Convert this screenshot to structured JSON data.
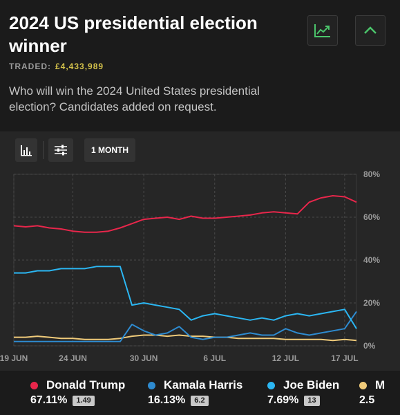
{
  "header": {
    "title": "2024 US presidential election winner",
    "traded_label": "TRADED:",
    "traded_value": "£4,433,989",
    "description": "Who will win the 2024 United States presidential election? Candidates added on request.",
    "chart_icon": "line-chart-icon",
    "collapse_icon": "chevron-up-icon"
  },
  "toolbar": {
    "chart_type_icon": "bar-chart-icon",
    "settings_icon": "sliders-icon",
    "range_label": "1 MONTH"
  },
  "colors": {
    "trump": "#e8264b",
    "harris": "#2e8bd0",
    "biden": "#2bb6f2",
    "fourth": "#f0cb7a",
    "accent": "#4bc56b"
  },
  "chart_data": {
    "type": "line",
    "x_tick_labels": [
      "19 JUN",
      "24 JUN",
      "30 JUN",
      "6 JUL",
      "12 JUL",
      "17 JUL"
    ],
    "x_tick_days": [
      0,
      5,
      11,
      17,
      23,
      28
    ],
    "y_tick_labels": [
      "80%",
      "60%",
      "40%",
      "20%",
      "0%"
    ],
    "y_ticks": [
      80,
      60,
      40,
      20,
      0
    ],
    "ylim": [
      0,
      80
    ],
    "xlim": [
      0,
      29
    ],
    "grid": true,
    "series": [
      {
        "key": "trump",
        "name": "Donald Trump",
        "x": [
          0,
          1,
          2,
          3,
          4,
          5,
          6,
          7,
          8,
          9,
          10,
          11,
          12,
          13,
          14,
          15,
          16,
          17,
          18,
          19,
          20,
          21,
          22,
          23,
          24,
          25,
          26,
          27,
          28,
          29
        ],
        "values": [
          56,
          55.5,
          56,
          55,
          54.5,
          53.5,
          53,
          53,
          53.5,
          55,
          57,
          59,
          59.5,
          60,
          59,
          60.5,
          59.5,
          59.5,
          60,
          60.5,
          61,
          62,
          62.5,
          62,
          61.5,
          67,
          69,
          70,
          69.5,
          67
        ]
      },
      {
        "key": "harris",
        "name": "Kamala Harris",
        "x": [
          0,
          1,
          2,
          3,
          4,
          5,
          6,
          7,
          8,
          9,
          10,
          11,
          12,
          13,
          14,
          15,
          16,
          17,
          18,
          19,
          20,
          21,
          22,
          23,
          24,
          25,
          26,
          27,
          28,
          29
        ],
        "values": [
          2,
          2,
          2,
          2,
          2,
          2,
          2,
          2,
          2,
          2,
          10,
          7,
          5,
          6,
          9,
          4,
          3,
          4,
          4,
          5,
          6,
          5,
          5,
          8,
          6,
          5,
          6,
          7,
          8,
          16
        ]
      },
      {
        "key": "biden",
        "name": "Joe Biden",
        "x": [
          0,
          1,
          2,
          3,
          4,
          5,
          6,
          7,
          8,
          9,
          10,
          11,
          12,
          13,
          14,
          15,
          16,
          17,
          18,
          19,
          20,
          21,
          22,
          23,
          24,
          25,
          26,
          27,
          28,
          29
        ],
        "values": [
          34,
          34,
          35,
          35,
          36,
          36,
          36,
          37,
          37,
          37,
          19,
          20,
          19,
          18,
          17,
          12,
          14,
          15,
          14,
          13,
          12,
          13,
          12,
          14,
          15,
          14,
          15,
          16,
          17,
          8
        ]
      },
      {
        "key": "fourth",
        "name": "M",
        "x": [
          0,
          1,
          2,
          3,
          4,
          5,
          6,
          7,
          8,
          9,
          10,
          11,
          12,
          13,
          14,
          15,
          16,
          17,
          18,
          19,
          20,
          21,
          22,
          23,
          24,
          25,
          26,
          27,
          28,
          29
        ],
        "values": [
          4,
          4,
          4.5,
          4,
          3.5,
          3.5,
          3,
          3,
          3,
          3.5,
          4.5,
          5,
          5,
          4.5,
          5,
          4.5,
          4.5,
          4,
          4,
          3.5,
          3.5,
          3.5,
          3.5,
          3,
          3,
          3,
          3,
          2.5,
          3,
          2.5
        ]
      }
    ]
  },
  "legend": [
    {
      "key": "trump",
      "name": "Donald Trump",
      "value": "67.11%",
      "badge": "1.49"
    },
    {
      "key": "harris",
      "name": "Kamala Harris",
      "value": "16.13%",
      "badge": "6.2"
    },
    {
      "key": "biden",
      "name": "Joe Biden",
      "value": "7.69%",
      "badge": "13"
    },
    {
      "key": "fourth",
      "name": "M",
      "value": "2.5",
      "badge": ""
    }
  ]
}
